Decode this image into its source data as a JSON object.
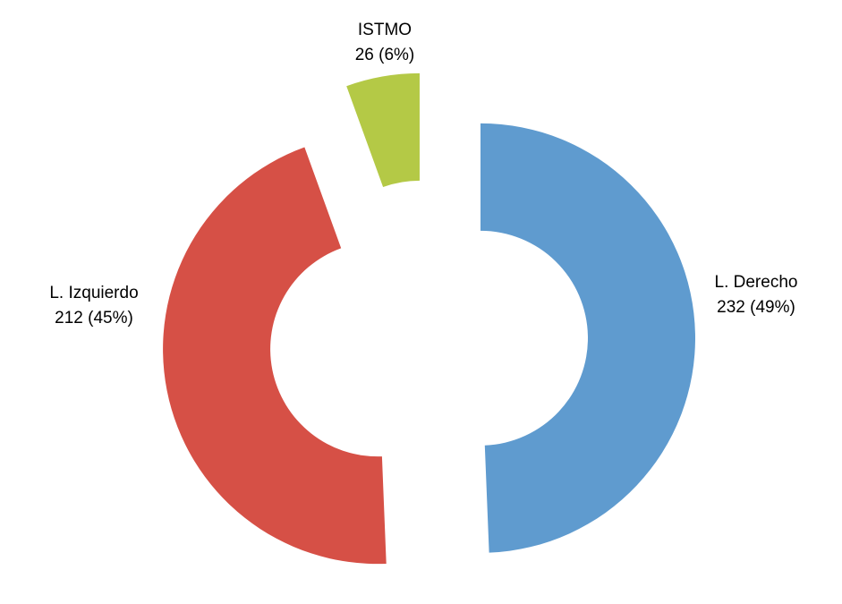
{
  "chart_data": {
    "type": "donut",
    "categories": [
      "L. Derecho",
      "L. Izquierdo",
      "ISTMO"
    ],
    "values": [
      232,
      212,
      26
    ],
    "value_labels": [
      "232 (49%)",
      "212 (45%)",
      "26 (6%)"
    ],
    "colors": [
      "#5f9bcf",
      "#d65046",
      "#b4c946"
    ]
  }
}
